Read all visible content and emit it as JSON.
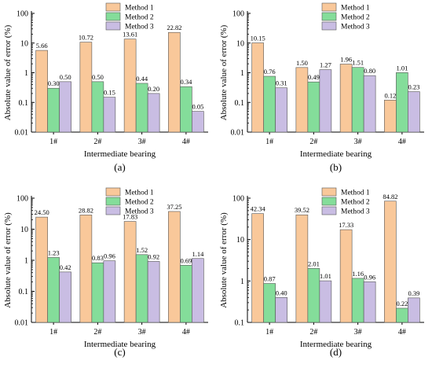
{
  "colors": {
    "Method 1": "#f9c89a",
    "Method 2": "#84dd9a",
    "Method 3": "#c9bde3",
    "stroke": "#555555",
    "axis": "#000000"
  },
  "chart_data": [
    {
      "type": "bar",
      "panel_label": "(a)",
      "xlabel": "Intermediate bearing",
      "ylabel": "Absolute value of error (%)",
      "yscale": "log",
      "ylim": [
        0.01,
        100
      ],
      "yticks": [
        "0.01",
        "0.1",
        "1",
        "10",
        "100"
      ],
      "ytick_values": [
        0.01,
        0.1,
        1,
        10,
        100
      ],
      "legend_position": "top-right",
      "categories": [
        "1#",
        "2#",
        "3#",
        "4#"
      ],
      "series": [
        {
          "name": "Method 1",
          "values": [
            5.66,
            10.72,
            13.61,
            22.82
          ],
          "labels": [
            "5.66",
            "10.72",
            "13.61",
            "22.82"
          ]
        },
        {
          "name": "Method 2",
          "values": [
            0.3,
            0.5,
            0.44,
            0.34
          ],
          "labels": [
            "0.30",
            "0.50",
            "0.44",
            "0.34"
          ]
        },
        {
          "name": "Method 3",
          "values": [
            0.5,
            0.15,
            0.2,
            0.05
          ],
          "labels": [
            "0.50",
            "0.15",
            "0.20",
            "0.05"
          ]
        }
      ]
    },
    {
      "type": "bar",
      "panel_label": "(b)",
      "xlabel": "Intermediate bearing",
      "ylabel": "Absolute value of error (%)",
      "yscale": "log",
      "ylim": [
        0.01,
        100
      ],
      "yticks": [
        "0.01",
        "0.1",
        "1",
        "10",
        "100"
      ],
      "ytick_values": [
        0.01,
        0.1,
        1,
        10,
        100
      ],
      "legend_position": "top-right",
      "categories": [
        "1#",
        "2#",
        "3#",
        "4#"
      ],
      "series": [
        {
          "name": "Method 1",
          "values": [
            10.15,
            1.5,
            1.96,
            0.12
          ],
          "labels": [
            "10.15",
            "1.50",
            "1.96",
            "0.12"
          ]
        },
        {
          "name": "Method 2",
          "values": [
            0.76,
            0.49,
            1.51,
            1.01
          ],
          "labels": [
            "0.76",
            "0.49",
            "1.51",
            "1.01"
          ]
        },
        {
          "name": "Method 3",
          "values": [
            0.31,
            1.27,
            0.8,
            0.23
          ],
          "labels": [
            "0.31",
            "1.27",
            "0.80",
            "0.23"
          ]
        }
      ]
    },
    {
      "type": "bar",
      "panel_label": "(c)",
      "xlabel": "Intermediate bearing",
      "ylabel": "Absolute value of error (%)",
      "yscale": "log",
      "ylim": [
        0.01,
        100
      ],
      "yticks": [
        "0.01",
        "0.1",
        "1",
        "10",
        "100"
      ],
      "ytick_values": [
        0.01,
        0.1,
        1,
        10,
        100
      ],
      "legend_position": "top-right",
      "categories": [
        "1#",
        "2#",
        "3#",
        "4#"
      ],
      "series": [
        {
          "name": "Method 1",
          "values": [
            24.5,
            28.82,
            17.83,
            37.25
          ],
          "labels": [
            "24.50",
            "28.82",
            "17.83",
            "37.25"
          ]
        },
        {
          "name": "Method 2",
          "values": [
            1.23,
            0.83,
            1.52,
            0.69
          ],
          "labels": [
            "1.23",
            "0.83",
            "1.52",
            "0.69"
          ]
        },
        {
          "name": "Method 3",
          "values": [
            0.42,
            0.96,
            0.92,
            1.14
          ],
          "labels": [
            "0.42",
            "0.96",
            "0.92",
            "1.14"
          ]
        }
      ]
    },
    {
      "type": "bar",
      "panel_label": "(d)",
      "xlabel": "Intermediate bearing",
      "ylabel": "Absolute value of error (%)",
      "yscale": "log",
      "ylim": [
        0.1,
        100
      ],
      "yticks": [
        "0.1",
        "1",
        "10",
        "100"
      ],
      "ytick_values": [
        0.1,
        1,
        10,
        100
      ],
      "legend_position": "top-right",
      "categories": [
        "1#",
        "2#",
        "3#",
        "4#"
      ],
      "series": [
        {
          "name": "Method 1",
          "values": [
            42.34,
            39.52,
            17.33,
            84.82
          ],
          "labels": [
            "42.34",
            "39.52",
            "17.33",
            "84.82"
          ]
        },
        {
          "name": "Method 2",
          "values": [
            0.87,
            2.01,
            1.16,
            0.22
          ],
          "labels": [
            "0.87",
            "2.01",
            "1.16",
            "0.22"
          ]
        },
        {
          "name": "Method 3",
          "values": [
            0.4,
            1.01,
            0.96,
            0.39
          ],
          "labels": [
            "0.40",
            "1.01",
            "0.96",
            "0.39"
          ]
        }
      ]
    }
  ]
}
